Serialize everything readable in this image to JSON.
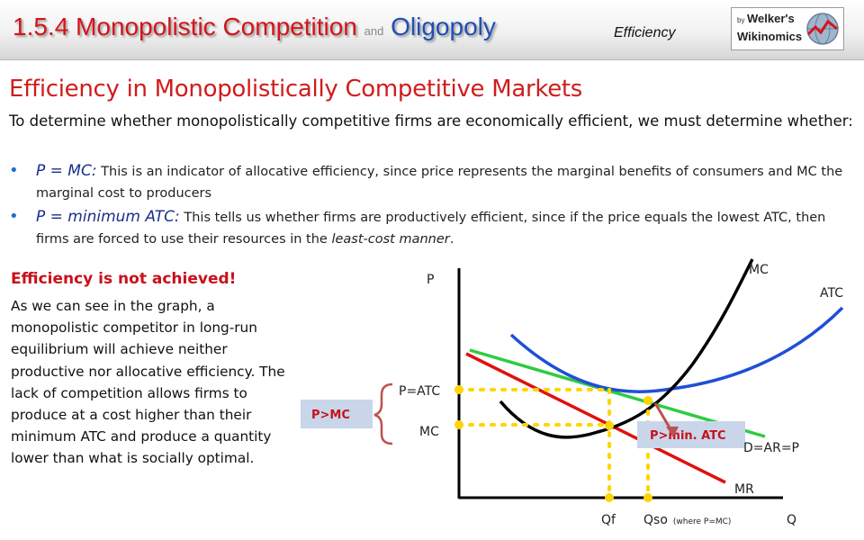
{
  "header": {
    "title_main": "1.5.4 Monopolistic Competition",
    "title_and": "and",
    "title_oligopoly": "Oligopoly",
    "section_tag": "Efficiency",
    "logo": {
      "by": "by",
      "line1": "Welker's",
      "line2": "Wikinomics"
    }
  },
  "content": {
    "heading": "Efficiency in Monopolistically Competitive Markets",
    "intro": "To determine whether monopolistically competitive firms are economically efficient, we must determine whether:",
    "bullets": [
      {
        "lead": "P = MC:",
        "text": " This is an indicator of allocative efficiency, since price represents the marginal benefits of consumers and MC the marginal cost to producers"
      },
      {
        "lead": "P = minimum ATC:",
        "text_before": " This tells us whether firms are productively efficient, since if the price equals the lowest ATC, then firms are forced to use their resources in the ",
        "emph": "least-cost manner",
        "text_after": "."
      }
    ],
    "side_heading": "Efficiency is not achieved!",
    "side_text": "As we can see in the graph, a monopolistic competitor in long-run equilibrium will achieve neither productive nor allocative efficiency. The lack of competition allows firms to produce at a cost higher than their minimum ATC and produce a quantity lower than what is socially optimal."
  },
  "diagram": {
    "axis_p": "P",
    "axis_q": "Q",
    "curve_mc": "MC",
    "curve_atc": "ATC",
    "curve_demand": "D=AR=P",
    "curve_mr": "MR",
    "label_p_atc": "P=ATC",
    "label_mc_level": "MC",
    "label_qf": "Qf",
    "label_qso": "Qso",
    "label_qso_note": "(where P=MC)",
    "callout_p_gt_mc": "P>MC",
    "callout_p_gt_min_atc": "P>min. ATC",
    "colors": {
      "mc": "#000000",
      "atc": "#1f4fd6",
      "demand": "#2ecc40",
      "mr": "#e01010",
      "dots": "#ffd400",
      "callout_bg": "#c9d6ea",
      "arrow": "#c0504d"
    }
  }
}
